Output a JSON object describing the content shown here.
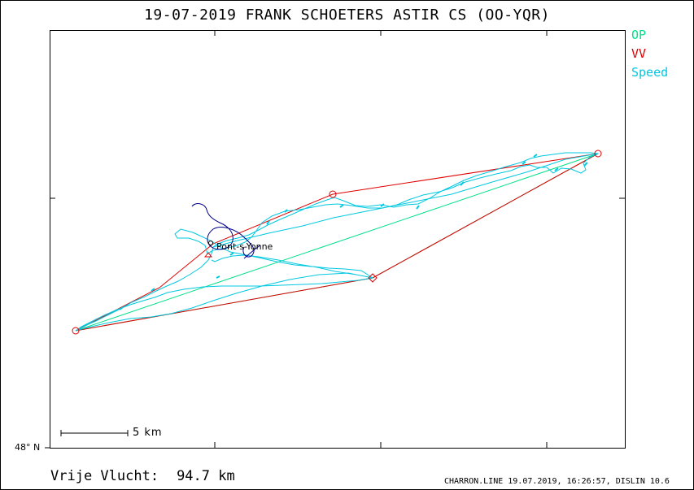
{
  "title": "19-07-2019   FRANK SCHOETERS   ASTIR CS (OO-YQR)",
  "legend": [
    {
      "label": "OP",
      "color": "#00e08a"
    },
    {
      "label": "VV",
      "color": "#e00000"
    },
    {
      "label": "Speed",
      "color": "#00c8e0"
    }
  ],
  "map": {
    "latitude_label": "48° N",
    "scale_label": "5 km",
    "town": "Pont-s-Yonne"
  },
  "footer": {
    "left_label": "Vrije Vlucht:",
    "left_value": "94.7 km",
    "right": "CHARRON.LINE 19.07.2019, 16:26:57, DISLIN 10.6"
  },
  "colors": {
    "track": "#00c8e0",
    "vv": "#e00000",
    "op": "#00e08a",
    "start_loop": "#00008b"
  },
  "icons": [
    "turnpoint-circle-icon",
    "turnpoint-diamond-icon",
    "start-marker-icon"
  ]
}
